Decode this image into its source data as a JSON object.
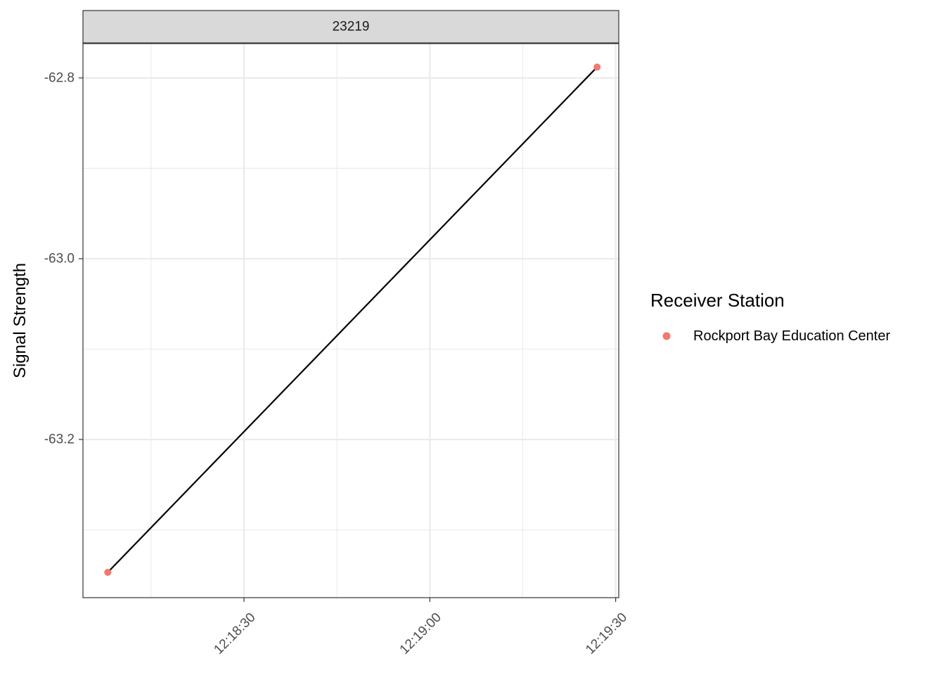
{
  "chart_data": {
    "type": "line",
    "facet": "23219",
    "ylabel": "Signal Strength",
    "xlabel": "",
    "x_format": "time",
    "xlim": [
      "12:18:04",
      "12:19:30.5"
    ],
    "ylim": [
      -63.375,
      -62.762
    ],
    "x_ticks": [
      "12:18:30",
      "12:19:00",
      "12:19:30"
    ],
    "y_ticks": [
      -62.8,
      -63.0,
      -63.2
    ],
    "y_tick_labels": [
      "-62.8",
      "-63.0",
      "-63.2"
    ],
    "grid": true,
    "legend": {
      "title": "Receiver Station",
      "position": "right"
    },
    "series": [
      {
        "name": "Rockport Bay Education Center",
        "color": "#F8766D",
        "line_color": "#000000",
        "points": [
          {
            "x": "12:18:08",
            "y": -63.347
          },
          {
            "x": "12:19:27",
            "y": -62.788
          }
        ]
      }
    ]
  }
}
